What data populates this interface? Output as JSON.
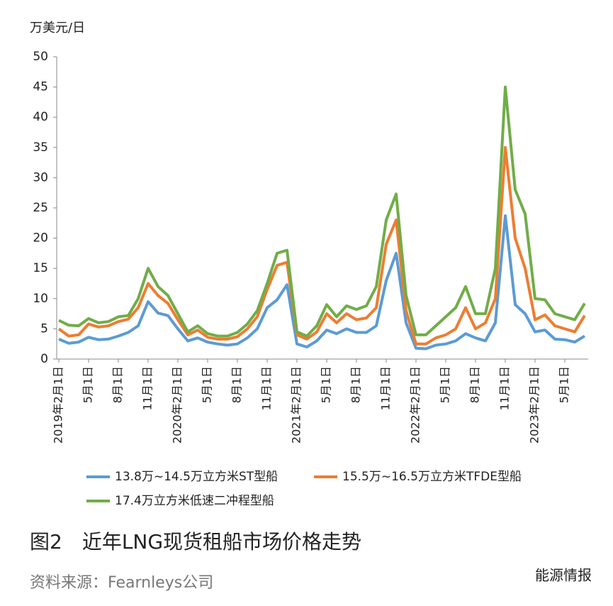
{
  "chart_data": {
    "type": "line",
    "y_unit": "万美元/日",
    "categories": [
      "2019年2月1日",
      null,
      null,
      "5月1日",
      null,
      null,
      "8月1日",
      null,
      null,
      "11月1日",
      null,
      null,
      "2020年2月1日",
      null,
      null,
      "5月1日",
      null,
      null,
      "8月1日",
      null,
      null,
      "11月1日",
      null,
      null,
      "2021年2月1日",
      null,
      null,
      "5月1日",
      null,
      null,
      "8月1日",
      null,
      null,
      "11月1日",
      null,
      null,
      "2022年2月1日",
      null,
      null,
      "5月1日",
      null,
      null,
      "8月1日",
      null,
      null,
      "11月1日",
      null,
      null,
      "2023年2月1日",
      null,
      null,
      "5月1日",
      null,
      null
    ],
    "series": [
      {
        "name": "13.8万~14.5万立方米ST型船",
        "color": "#5b9bd5",
        "values": [
          3.3,
          2.6,
          2.8,
          3.6,
          3.2,
          3.3,
          3.8,
          4.4,
          5.5,
          9.5,
          7.6,
          7.2,
          5.0,
          3.0,
          3.5,
          2.8,
          2.5,
          2.3,
          2.5,
          3.5,
          5.0,
          8.5,
          9.8,
          12.3,
          2.5,
          2.0,
          3.0,
          4.8,
          4.2,
          5.0,
          4.4,
          4.4,
          5.5,
          13,
          17.5,
          6.0,
          1.8,
          1.7,
          2.3,
          2.5,
          3.0,
          4.2,
          3.5,
          3.0,
          6.0,
          23.7,
          9.0,
          7.5,
          4.5,
          4.8,
          3.3,
          3.2,
          2.8,
          3.8
        ]
      },
      {
        "name": "15.5万~16.5万立方米TFDE型船",
        "color": "#ed7d31",
        "values": [
          5.0,
          3.8,
          4.0,
          5.8,
          5.3,
          5.5,
          6.2,
          6.6,
          8.5,
          12.5,
          10.5,
          9.2,
          6.5,
          4.0,
          4.8,
          3.6,
          3.3,
          3.3,
          3.7,
          5.0,
          7.0,
          11.5,
          15.5,
          16.0,
          4.0,
          3.3,
          4.5,
          7.5,
          6.0,
          7.5,
          6.5,
          6.8,
          8.5,
          19,
          23,
          8.0,
          2.5,
          2.5,
          3.5,
          4.0,
          5.0,
          8.5,
          5.0,
          6.0,
          10,
          35,
          20,
          15,
          6.5,
          7.3,
          5.5,
          5.0,
          4.5,
          7.2
        ]
      },
      {
        "name": "17.4万立方米低速二冲程型船",
        "color": "#70ad47",
        "values": [
          6.4,
          5.6,
          5.5,
          6.7,
          6.0,
          6.2,
          7.0,
          7.2,
          10.0,
          15.0,
          12.0,
          10.5,
          7.5,
          4.5,
          5.5,
          4.2,
          3.8,
          3.8,
          4.4,
          5.8,
          8.0,
          12.5,
          17.5,
          18.0,
          4.5,
          3.8,
          5.5,
          9.0,
          7.0,
          8.8,
          8.2,
          8.8,
          12,
          23,
          27.3,
          10.5,
          4.0,
          4.0,
          5.5,
          7.0,
          8.5,
          12.0,
          7.5,
          7.5,
          15,
          45,
          28,
          24,
          10,
          9.8,
          7.5,
          7.0,
          6.5,
          9.2
        ]
      }
    ],
    "ylim": [
      0,
      50
    ],
    "yticks": [
      0,
      5,
      10,
      15,
      20,
      25,
      30,
      35,
      40,
      45,
      50
    ],
    "grid": false,
    "caption": "图2　近年LNG现货租船市场价格走势",
    "source": "资料来源：Fearnleys公司",
    "watermark": "能源情报"
  }
}
